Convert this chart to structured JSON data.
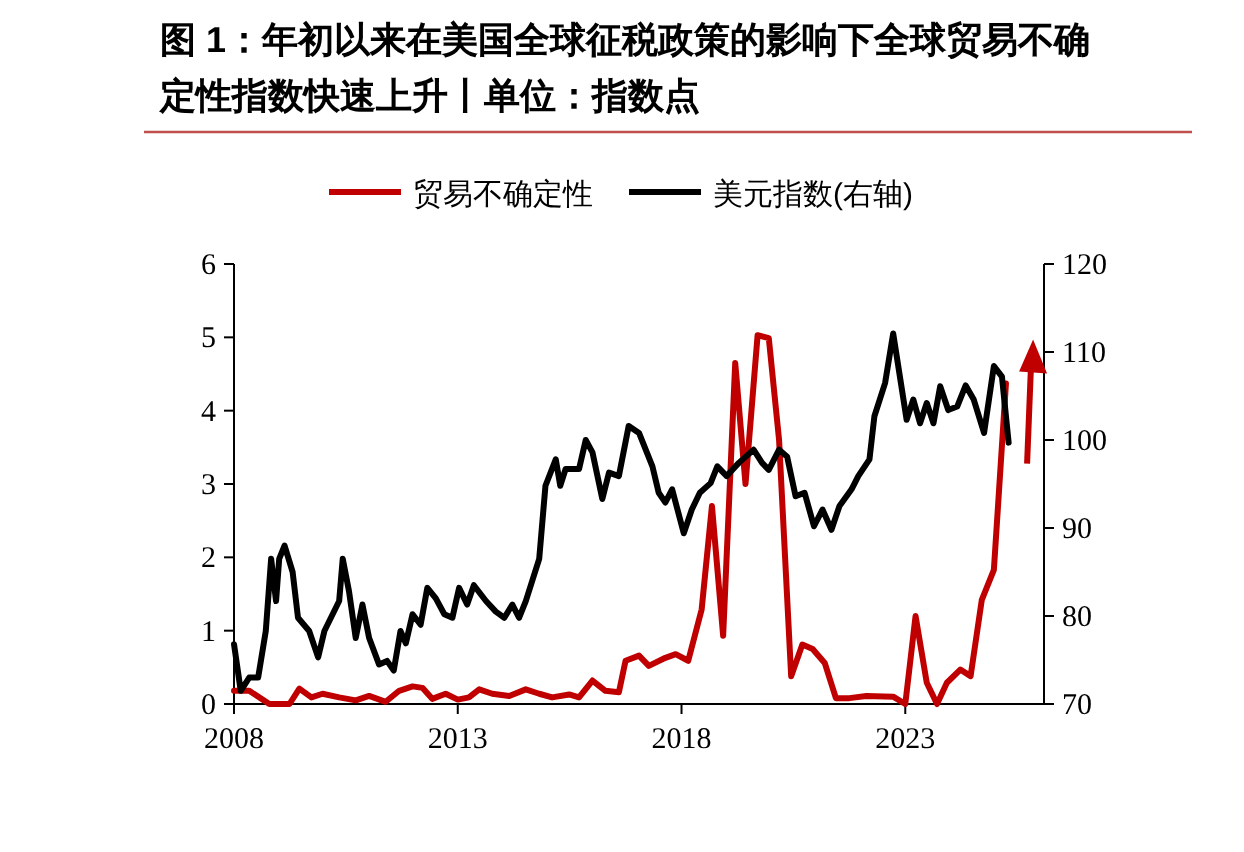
{
  "chart_data": {
    "type": "line",
    "title": "图 1：年初以来在美国全球征税政策的影响下全球贸易不确定性指数快速上升丨单位：指数点",
    "xlim": [
      2008,
      2026.1
    ],
    "xticks": [
      2008,
      2013,
      2018,
      2023
    ],
    "ylim": [
      0,
      6
    ],
    "yticks": [
      0,
      1,
      2,
      3,
      4,
      5,
      6
    ],
    "y2lim": [
      70,
      120
    ],
    "y2ticks": [
      70,
      80,
      90,
      100,
      110,
      120
    ],
    "grid": false,
    "legend": "top",
    "line_style": "solid",
    "series": [
      {
        "name": "贸易不确定性",
        "color": "#c00000",
        "x": [
          2008.0,
          2008.34,
          2008.79,
          2009.24,
          2009.46,
          2009.73,
          2009.98,
          2010.35,
          2010.72,
          2011.02,
          2011.39,
          2011.69,
          2011.99,
          2012.21,
          2012.43,
          2012.73,
          2013.0,
          2013.25,
          2013.48,
          2013.77,
          2014.15,
          2014.52,
          2014.82,
          2015.11,
          2015.49,
          2015.71,
          2016.01,
          2016.3,
          2016.6,
          2016.75,
          2017.05,
          2017.27,
          2017.64,
          2017.87,
          2018.15,
          2018.45,
          2018.68,
          2018.93,
          2019.2,
          2019.43,
          2019.7,
          2019.95,
          2020.18,
          2020.45,
          2020.7,
          2020.93,
          2021.2,
          2021.45,
          2021.75,
          2022.13,
          2022.73,
          2023.0,
          2023.23,
          2023.48,
          2023.71,
          2023.93,
          2024.23,
          2024.46,
          2024.71,
          2024.98,
          2025.25
        ],
        "values": [
          0.18,
          0.18,
          0,
          0,
          0.21,
          0.09,
          0.14,
          0.09,
          0.05,
          0.11,
          0.03,
          0.18,
          0.24,
          0.22,
          0.07,
          0.14,
          0.06,
          0.09,
          0.2,
          0.14,
          0.11,
          0.2,
          0.14,
          0.09,
          0.13,
          0.09,
          0.32,
          0.18,
          0.16,
          0.59,
          0.66,
          0.52,
          0.63,
          0.68,
          0.59,
          1.29,
          2.7,
          0.93,
          4.65,
          3.0,
          5.03,
          4.99,
          3.6,
          0.38,
          0.81,
          0.75,
          0.56,
          0.08,
          0.08,
          0.11,
          0.1,
          0,
          1.2,
          0.29,
          0,
          0.29,
          0.47,
          0.38,
          1.42,
          1.83,
          4.37
        ]
      },
      {
        "name": "美元指数(右轴)",
        "color": "#000000",
        "axis": "y2",
        "x": [
          2008.0,
          2008.15,
          2008.34,
          2008.54,
          2008.71,
          2008.83,
          2008.94,
          2009.01,
          2009.13,
          2009.31,
          2009.43,
          2009.68,
          2009.88,
          2010.02,
          2010.35,
          2010.43,
          2010.57,
          2010.72,
          2010.87,
          2011.02,
          2011.24,
          2011.42,
          2011.57,
          2011.72,
          2011.84,
          2011.99,
          2012.17,
          2012.32,
          2012.51,
          2012.7,
          2012.88,
          2013.03,
          2013.21,
          2013.36,
          2013.63,
          2013.85,
          2014.04,
          2014.22,
          2014.37,
          2014.52,
          2014.82,
          2014.96,
          2015.19,
          2015.29,
          2015.41,
          2015.71,
          2015.86,
          2016.01,
          2016.23,
          2016.38,
          2016.6,
          2016.82,
          2017.05,
          2017.35,
          2017.49,
          2017.64,
          2017.79,
          2018.05,
          2018.23,
          2018.41,
          2018.65,
          2018.8,
          2019.01,
          2019.28,
          2019.61,
          2019.8,
          2019.95,
          2020.18,
          2020.36,
          2020.55,
          2020.75,
          2020.96,
          2021.15,
          2021.35,
          2021.53,
          2021.8,
          2021.95,
          2022.2,
          2022.31,
          2022.55,
          2022.73,
          2023.03,
          2023.18,
          2023.33,
          2023.48,
          2023.63,
          2023.78,
          2023.96,
          2024.16,
          2024.35,
          2024.53,
          2024.76,
          2024.98,
          2025.16,
          2025.31
        ],
        "values": [
          76.8,
          71.5,
          73.0,
          73.0,
          78.3,
          86.5,
          81.7,
          86.5,
          88.0,
          85.0,
          79.8,
          78.3,
          75.3,
          78.3,
          81.7,
          86.5,
          82.8,
          77.5,
          81.3,
          77.5,
          74.5,
          74.9,
          73.8,
          78.3,
          76.9,
          80.2,
          79.0,
          83.2,
          82.0,
          80.2,
          79.8,
          83.2,
          81.3,
          83.5,
          81.7,
          80.5,
          79.8,
          81.3,
          79.8,
          81.7,
          86.5,
          94.8,
          97.8,
          94.8,
          96.7,
          96.7,
          100.0,
          98.6,
          93.3,
          96.3,
          95.9,
          101.6,
          100.8,
          97.0,
          94.0,
          92.9,
          94.4,
          89.4,
          92.1,
          94.0,
          95.1,
          97.0,
          95.9,
          97.4,
          98.9,
          97.4,
          96.6,
          98.9,
          98.1,
          93.6,
          94.0,
          90.2,
          92.1,
          89.8,
          92.5,
          94.4,
          95.9,
          97.8,
          102.7,
          106.5,
          112.1,
          102.3,
          104.6,
          101.9,
          104.2,
          101.9,
          106.1,
          103.4,
          103.8,
          106.2,
          104.6,
          100.8,
          108.4,
          107.2,
          99.7
        ]
      }
    ]
  }
}
